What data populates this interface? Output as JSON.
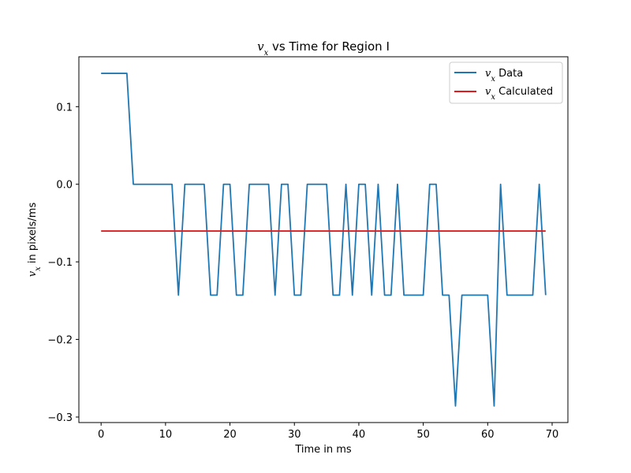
{
  "chart_data": {
    "type": "line",
    "title": "v_x vs Time for Region I",
    "title_var": "v",
    "title_sub": "x",
    "title_rest": " vs Time for Region I",
    "xlabel": "Time in ms",
    "ylabel": "v_x in pixels/ms",
    "ylabel_var": "v",
    "ylabel_sub": "x",
    "ylabel_rest": " in pixels/ms",
    "xlim": [
      -3.45,
      72.45
    ],
    "ylim": [
      -0.3071,
      0.1643
    ],
    "xticks": [
      0,
      10,
      20,
      30,
      40,
      50,
      60,
      70
    ],
    "xtick_labels": [
      "0",
      "10",
      "20",
      "30",
      "40",
      "50",
      "60",
      "70"
    ],
    "yticks": [
      0.1,
      0.0,
      -0.1,
      -0.2,
      -0.3
    ],
    "ytick_labels": [
      "0.1",
      "0.0",
      "−0.1",
      "−0.2",
      "−0.3"
    ],
    "grid": false,
    "legend_position": "top-right",
    "series": [
      {
        "name": "v_x Data",
        "name_var": "v",
        "name_sub": "x",
        "name_rest": " Data",
        "color": "#1f77b4",
        "x": [
          0,
          1,
          2,
          3,
          4,
          5,
          6,
          7,
          8,
          9,
          10,
          11,
          12,
          13,
          14,
          15,
          16,
          17,
          18,
          19,
          20,
          21,
          22,
          23,
          24,
          25,
          26,
          27,
          28,
          29,
          30,
          31,
          32,
          33,
          34,
          35,
          36,
          37,
          38,
          39,
          40,
          41,
          42,
          43,
          44,
          45,
          46,
          47,
          48,
          49,
          50,
          51,
          52,
          53,
          54,
          55,
          56,
          57,
          58,
          59,
          60,
          61,
          62,
          63,
          64,
          65,
          66,
          67,
          68,
          69
        ],
        "values": [
          0.1429,
          0.1429,
          0.1429,
          0.1429,
          0.1429,
          0,
          0,
          0,
          0,
          0,
          0,
          0,
          -0.1429,
          0,
          0,
          0,
          0,
          -0.1429,
          -0.1429,
          0,
          0,
          -0.1429,
          -0.1429,
          0,
          0,
          0,
          0,
          -0.1429,
          0,
          0,
          -0.1429,
          -0.1429,
          0,
          0,
          0,
          0,
          -0.1429,
          -0.1429,
          0,
          -0.1429,
          0,
          0,
          -0.1429,
          0,
          -0.1429,
          -0.1429,
          0,
          -0.1429,
          -0.1429,
          -0.1429,
          -0.1429,
          0,
          0,
          -0.1429,
          -0.1429,
          -0.2857,
          -0.1429,
          -0.1429,
          -0.1429,
          -0.1429,
          -0.1429,
          -0.2857,
          0,
          -0.1429,
          -0.1429,
          -0.1429,
          -0.1429,
          -0.1429,
          0,
          -0.1429
        ]
      },
      {
        "name": "v_x Calculated",
        "name_var": "v",
        "name_sub": "x",
        "name_rest": " Calculated",
        "color": "#e41a1c",
        "x": [
          0,
          69
        ],
        "values": [
          -0.0603,
          -0.0603
        ]
      }
    ]
  }
}
